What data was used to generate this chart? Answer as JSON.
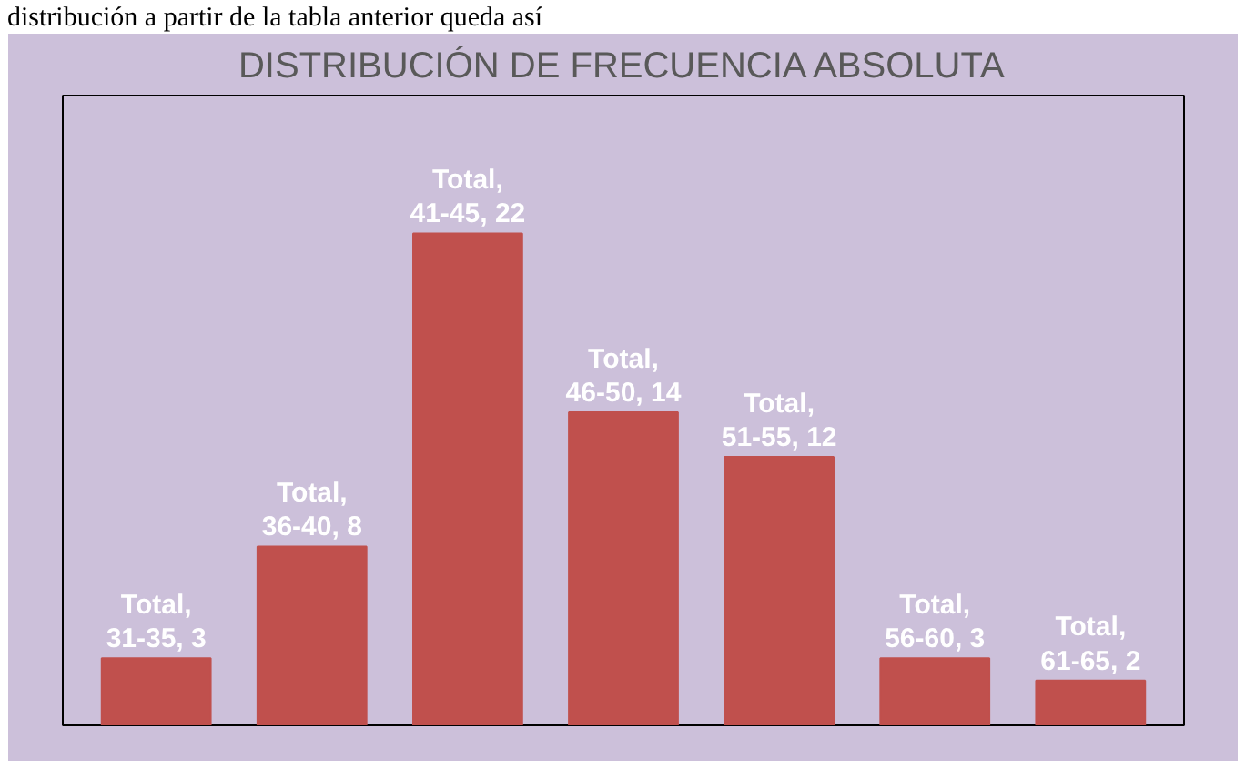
{
  "chart_data": {
    "type": "bar",
    "title": "DISTRIBUCIÓN DE FRECUENCIA ABSOLUTA",
    "annotations": [
      "distribución a partir de la tabla anterior queda así"
    ],
    "categories": [
      null,
      null,
      null,
      null,
      null,
      null,
      null
    ],
    "series": [
      {
        "color": "#c0504d",
        "values": [
          3,
          8,
          22,
          14,
          12,
          3,
          2
        ],
        "value_labels": [
          "Total, 31-35, 3",
          "Total, 36-40, 8",
          "Total, 41-45, 22",
          "Total, 46-50, 14",
          "Total, 51-55, 12",
          "Total, 56-60, 3",
          "Total, 61-65, 2"
        ]
      }
    ],
    "grid": false
  }
}
